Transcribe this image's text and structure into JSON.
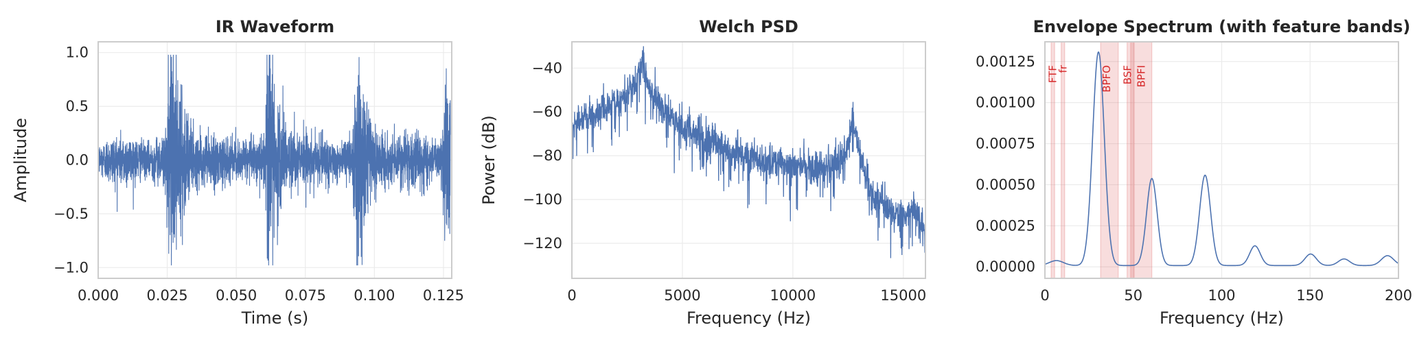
{
  "chart_data": [
    {
      "type": "line",
      "title": "IR Waveform",
      "xlabel": "Time (s)",
      "ylabel": "Amplitude",
      "xlim": [
        0,
        0.128
      ],
      "ylim": [
        -1.1,
        1.1
      ],
      "xticks": [
        0.0,
        0.025,
        0.05,
        0.075,
        0.1,
        0.125
      ],
      "xtick_labels": [
        "0.000",
        "0.025",
        "0.050",
        "0.075",
        "0.100",
        "0.125"
      ],
      "yticks": [
        -1.0,
        -0.5,
        0.0,
        0.5,
        1.0
      ],
      "ytick_labels": [
        "−1.0",
        "−0.5",
        "0.0",
        "0.5",
        "1.0"
      ],
      "grid": true,
      "color": "#4c72b0",
      "series": [
        {
          "baseline_amplitude": 0.13,
          "impacts": [
            {
              "t": 0.0258,
              "peak": 1.0,
              "decay_s": 0.0055
            },
            {
              "t": 0.0612,
              "peak": 0.9,
              "decay_s": 0.0055
            },
            {
              "t": 0.0935,
              "peak": 0.75,
              "decay_s": 0.0055
            },
            {
              "t": 0.1255,
              "peak": 0.65,
              "decay_s": 0.0055
            }
          ]
        }
      ]
    },
    {
      "type": "line",
      "title": "Welch PSD",
      "xlabel": "Frequency (Hz)",
      "ylabel": "Power (dB)",
      "xlim": [
        0,
        16000
      ],
      "ylim": [
        -136,
        -28
      ],
      "xticks": [
        0,
        5000,
        10000,
        15000
      ],
      "xtick_labels": [
        "0",
        "5000",
        "10000",
        "15000"
      ],
      "yticks": [
        -120,
        -100,
        -80,
        -60,
        -40
      ],
      "ytick_labels": [
        "−120",
        "−100",
        "−80",
        "−60",
        "−40"
      ],
      "grid": true,
      "color": "#4c72b0",
      "series": [
        {
          "trend_hz": [
            0,
            500,
            1000,
            2000,
            2800,
            3200,
            3600,
            4500,
            6000,
            8000,
            10000,
            11000,
            12000,
            12500,
            12700,
            13000,
            13500,
            14000,
            14500,
            15000,
            15500,
            16000
          ],
          "trend_db": [
            -68,
            -62,
            -62,
            -56,
            -48,
            -38,
            -52,
            -63,
            -72,
            -81,
            -84,
            -85,
            -83,
            -75,
            -62,
            -78,
            -96,
            -100,
            -106,
            -107,
            -104,
            -116
          ],
          "noise_db": 7
        }
      ]
    },
    {
      "type": "line",
      "title": "Envelope Spectrum (with feature bands)",
      "xlabel": "Frequency (Hz)",
      "ylabel": "",
      "xlim": [
        0,
        200
      ],
      "ylim": [
        -7e-05,
        0.00137
      ],
      "xticks": [
        0,
        50,
        100,
        150,
        200
      ],
      "xtick_labels": [
        "0",
        "50",
        "100",
        "150",
        "200"
      ],
      "yticks": [
        0.0,
        0.00025,
        0.0005,
        0.00075,
        0.001,
        0.00125
      ],
      "ytick_labels": [
        "0.00000",
        "0.00025",
        "0.00050",
        "0.00075",
        "0.00100",
        "0.00125"
      ],
      "grid": true,
      "color": "#4c72b0",
      "band_color": "#e06666",
      "label_color": "#d62728",
      "bands": [
        {
          "label": "FTF",
          "lo": 3.5,
          "hi": 5.5
        },
        {
          "label": "fr",
          "lo": 9.2,
          "hi": 11.2
        },
        {
          "label": "BPFO",
          "lo": 31.5,
          "hi": 41.5
        },
        {
          "label": "BSF",
          "lo": 46.5,
          "hi": 50.5
        },
        {
          "label": "BPFI",
          "lo": 48.5,
          "hi": 60.5
        }
      ],
      "series": [
        {
          "peaks": [
            {
              "x": 6.5,
              "y": 3e-05,
              "width": 4
            },
            {
              "x": 30.3,
              "y": 0.0013,
              "width": 3.3
            },
            {
              "x": 60.5,
              "y": 0.00053,
              "width": 3.0
            },
            {
              "x": 90.6,
              "y": 0.00055,
              "width": 3.1
            },
            {
              "x": 118.8,
              "y": 0.00012,
              "width": 3.0
            },
            {
              "x": 150.3,
              "y": 7e-05,
              "width": 3.2
            },
            {
              "x": 169.2,
              "y": 4e-05,
              "width": 3.2
            },
            {
              "x": 193.8,
              "y": 6e-05,
              "width": 3.5
            }
          ],
          "floor": 8e-06
        }
      ]
    }
  ]
}
